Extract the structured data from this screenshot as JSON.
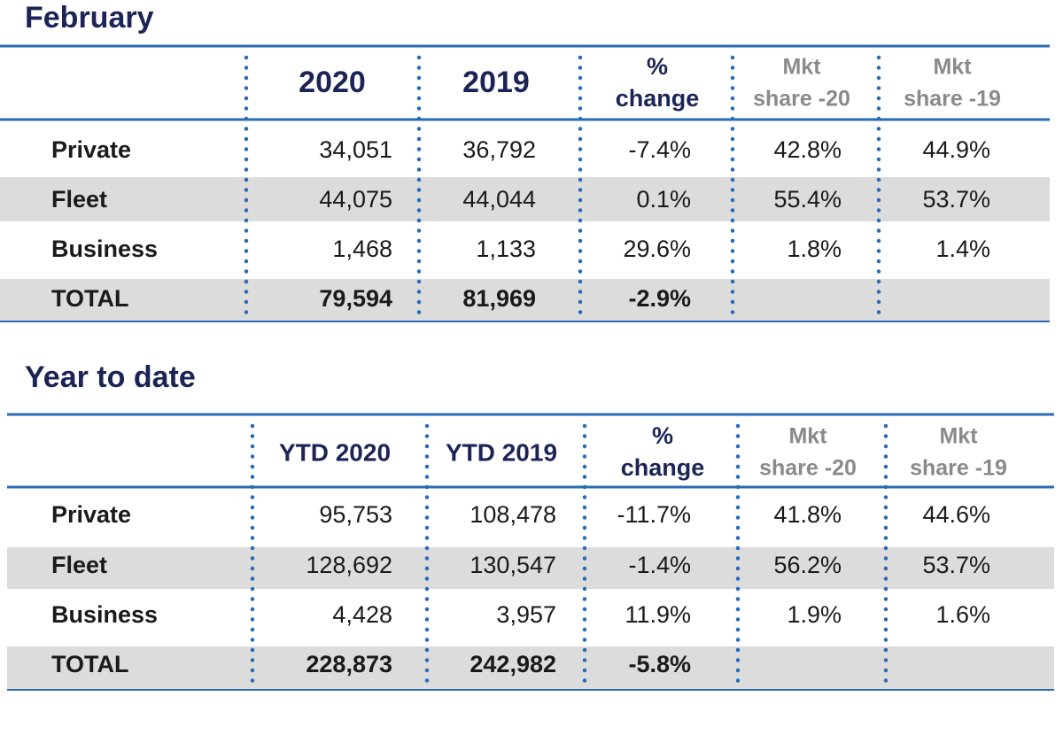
{
  "february": {
    "title": "February",
    "columns": [
      [
        "2020"
      ],
      [
        "2019"
      ],
      [
        "%",
        "change"
      ],
      [
        "Mkt",
        "share -20"
      ],
      [
        "Mkt",
        "share -19"
      ]
    ],
    "rows": [
      {
        "label": "Private",
        "values": [
          "34,051",
          "36,792",
          "-7.4%",
          "42.8%",
          "44.9%"
        ]
      },
      {
        "label": "Fleet",
        "values": [
          "44,075",
          "44,044",
          "0.1%",
          "55.4%",
          "53.7%"
        ]
      },
      {
        "label": "Business",
        "values": [
          "1,468",
          "1,133",
          "29.6%",
          "1.8%",
          "1.4%"
        ]
      },
      {
        "label": "TOTAL",
        "values": [
          "79,594",
          "81,969",
          "-2.9%"
        ]
      }
    ]
  },
  "year_to_date": {
    "title": "Year to date",
    "columns": [
      [
        "YTD 2020"
      ],
      [
        "YTD 2019"
      ],
      [
        "%",
        "change"
      ],
      [
        "Mkt",
        "share -20"
      ],
      [
        "Mkt",
        "share -19"
      ]
    ],
    "rows": [
      {
        "label": "Private",
        "values": [
          "95,753",
          "108,478",
          "-11.7%",
          "41.8%",
          "44.6%"
        ]
      },
      {
        "label": "Fleet",
        "values": [
          "128,692",
          "130,547",
          "-1.4%",
          "56.2%",
          "53.7%"
        ]
      },
      {
        "label": "Business",
        "values": [
          "4,428",
          "3,957",
          "11.9%",
          "1.9%",
          "1.6%"
        ]
      },
      {
        "label": "TOTAL",
        "values": [
          "228,873",
          "242,982",
          "-5.8%"
        ]
      }
    ]
  }
}
